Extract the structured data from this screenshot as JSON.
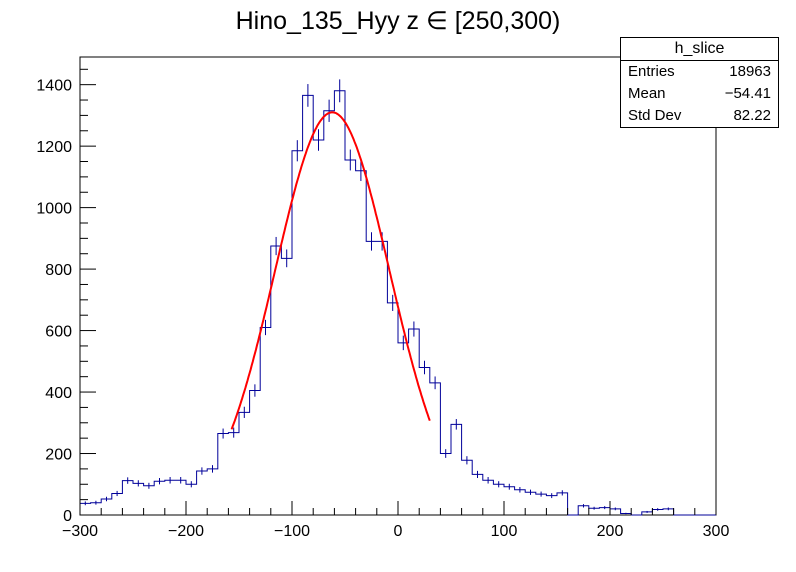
{
  "chart_data": {
    "type": "histogram",
    "title": "Hino_135_Hyy z  ∈ [250,300)",
    "xlim": [
      -300,
      300
    ],
    "ylim": [
      0,
      1490
    ],
    "x_ticks": [
      -300,
      -200,
      -100,
      0,
      100,
      200,
      300
    ],
    "y_ticks": [
      0,
      200,
      400,
      600,
      800,
      1000,
      1200,
      1400
    ],
    "bin_width": 10,
    "bins": [
      [
        -300,
        38
      ],
      [
        -290,
        40
      ],
      [
        -280,
        52
      ],
      [
        -270,
        70
      ],
      [
        -260,
        112
      ],
      [
        -250,
        103
      ],
      [
        -240,
        95
      ],
      [
        -230,
        110
      ],
      [
        -220,
        113
      ],
      [
        -210,
        113
      ],
      [
        -200,
        100
      ],
      [
        -190,
        143
      ],
      [
        -180,
        150
      ],
      [
        -170,
        265
      ],
      [
        -160,
        268
      ],
      [
        -150,
        334
      ],
      [
        -140,
        405
      ],
      [
        -130,
        610
      ],
      [
        -120,
        875
      ],
      [
        -110,
        835
      ],
      [
        -100,
        1185
      ],
      [
        -90,
        1365
      ],
      [
        -80,
        1220
      ],
      [
        -70,
        1315
      ],
      [
        -60,
        1380
      ],
      [
        -50,
        1155
      ],
      [
        -40,
        1120
      ],
      [
        -30,
        890
      ],
      [
        -20,
        890
      ],
      [
        -10,
        690
      ],
      [
        0,
        560
      ],
      [
        10,
        605
      ],
      [
        20,
        480
      ],
      [
        30,
        430
      ],
      [
        40,
        200
      ],
      [
        50,
        295
      ],
      [
        60,
        178
      ],
      [
        70,
        132
      ],
      [
        80,
        113
      ],
      [
        90,
        100
      ],
      [
        100,
        92
      ],
      [
        110,
        82
      ],
      [
        120,
        74
      ],
      [
        130,
        68
      ],
      [
        140,
        63
      ],
      [
        150,
        72
      ],
      [
        160,
        0
      ],
      [
        170,
        30
      ],
      [
        180,
        22
      ],
      [
        190,
        24
      ],
      [
        200,
        20
      ],
      [
        210,
        5
      ],
      [
        220,
        0
      ],
      [
        230,
        10
      ],
      [
        240,
        18
      ],
      [
        250,
        20
      ],
      [
        260,
        0
      ],
      [
        270,
        0
      ],
      [
        280,
        0
      ],
      [
        290,
        0
      ]
    ],
    "fit": {
      "type": "gaussian",
      "color": "#ff0000",
      "amplitude": 1310,
      "mean": -62,
      "sigma": 54,
      "x_range": [
        -157,
        30
      ]
    },
    "hist_color": "#000099",
    "stats_box": {
      "name": "h_slice",
      "rows": [
        {
          "label": "Entries",
          "value": "18963"
        },
        {
          "label": "Mean",
          "value": "−54.41"
        },
        {
          "label": "Std Dev",
          "value": "82.22"
        }
      ]
    }
  }
}
